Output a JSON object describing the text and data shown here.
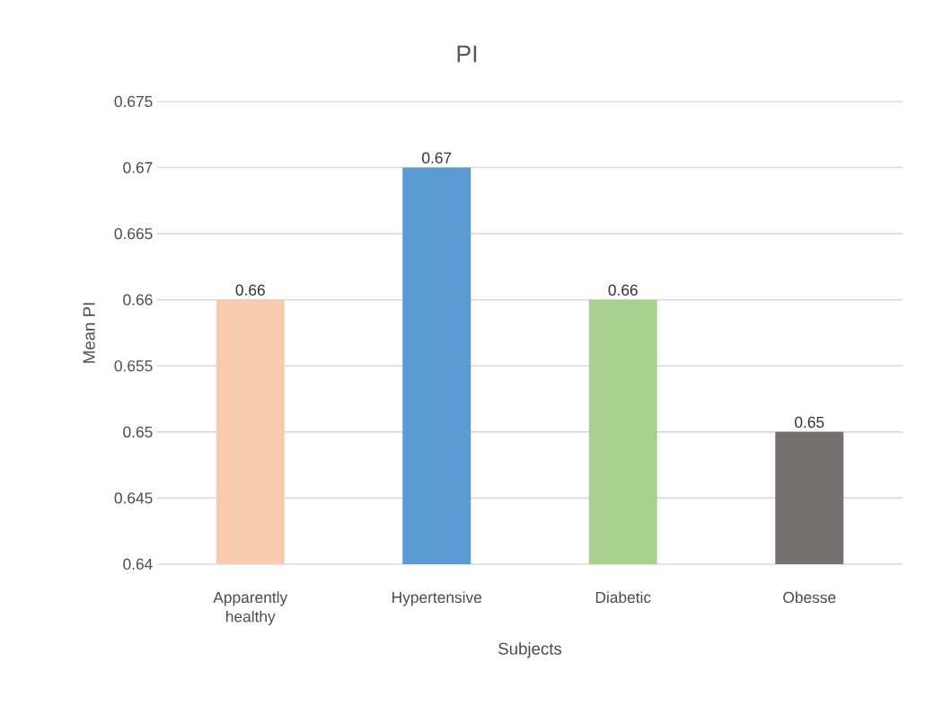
{
  "chart_data": {
    "type": "bar",
    "title": "PI",
    "xlabel": "Subjects",
    "ylabel": "Mean PI",
    "categories": [
      "Apparently healthy",
      "Hypertensive",
      "Diabetic",
      "Obesse"
    ],
    "values": [
      0.66,
      0.67,
      0.66,
      0.65
    ],
    "colors": [
      "#f8cbad",
      "#5b9bd5",
      "#a9d18e",
      "#767171"
    ],
    "ylim": [
      0.64,
      0.675
    ],
    "yticks": [
      0.64,
      0.645,
      0.65,
      0.655,
      0.66,
      0.665,
      0.67,
      0.675
    ],
    "grid": "y",
    "data_labels": true
  }
}
